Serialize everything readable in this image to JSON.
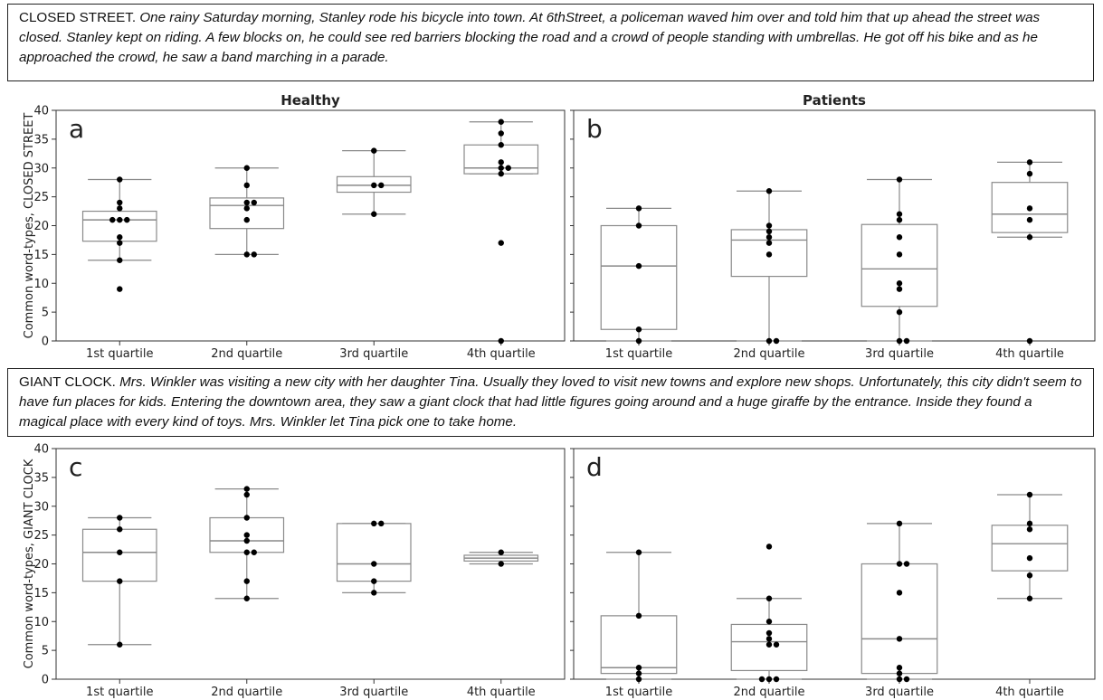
{
  "stories": [
    {
      "heading": "CLOSED STREET.",
      "text": "One rainy Saturday morning, Stanley rode his bicycle into town. At 6thStreet, a policeman waved him over and told him that up ahead the street was closed. Stanley kept on riding. A few blocks on, he could see red barriers blocking the road and a crowd of people standing with umbrellas. He got off his bike and as he approached the crowd, he saw a band marching in a parade."
    },
    {
      "heading": "GIANT CLOCK.",
      "text": "Mrs. Winkler was visiting a new city with her daughter Tina. Usually they loved to visit new towns and explore new shops. Unfortunately, this city didn't seem to have fun places for kids. Entering the downtown area, they saw a giant clock that had little figures going around and a huge giraffe by the entrance. Inside they found a magical place with every kind of toys. Mrs. Winkler let Tina pick one to take home."
    }
  ],
  "chart_data": [
    {
      "type": "box",
      "panel": "a",
      "title": "Healthy",
      "ylabel": "Common word-types, CLOSED STREET",
      "ylim": [
        0,
        40
      ],
      "yticks": [
        0,
        5,
        10,
        15,
        20,
        25,
        30,
        35,
        40
      ],
      "categories": [
        "1st quartile",
        "2nd quartile",
        "3rd quartile",
        "4th quartile"
      ],
      "boxes": [
        {
          "min": 14,
          "q1": 17.3,
          "median": 21,
          "q3": 22.5,
          "max": 28
        },
        {
          "min": 15,
          "q1": 19.5,
          "median": 23.5,
          "q3": 24.8,
          "max": 30
        },
        {
          "min": 22,
          "q1": 25.8,
          "median": 27,
          "q3": 28.5,
          "max": 33
        },
        {
          "min": 29,
          "q1": 29,
          "median": 30,
          "q3": 34,
          "max": 38
        }
      ],
      "points": [
        [
          28,
          24,
          23,
          21,
          21,
          21,
          18,
          17,
          14,
          9
        ],
        [
          30,
          27,
          24,
          24,
          23,
          21,
          15,
          15
        ],
        [
          33,
          27,
          27,
          22
        ],
        [
          38,
          36,
          34,
          31,
          30,
          30,
          29,
          17,
          0
        ]
      ]
    },
    {
      "type": "box",
      "panel": "b",
      "title": "Patients",
      "ylabel": "",
      "ylim": [
        0,
        40
      ],
      "categories": [
        "1st quartile",
        "2nd quartile",
        "3rd quartile",
        "4th quartile"
      ],
      "boxes": [
        {
          "min": 0,
          "q1": 2,
          "median": 13,
          "q3": 20,
          "max": 23
        },
        {
          "min": 0,
          "q1": 11.2,
          "median": 17.5,
          "q3": 19.3,
          "max": 26
        },
        {
          "min": 0,
          "q1": 6,
          "median": 12.5,
          "q3": 20.2,
          "max": 28
        },
        {
          "min": 18,
          "q1": 18.8,
          "median": 22,
          "q3": 27.5,
          "max": 31
        }
      ],
      "points": [
        [
          23,
          20,
          13,
          2,
          0
        ],
        [
          26,
          20,
          19,
          18,
          17,
          15,
          0,
          0
        ],
        [
          28,
          22,
          21,
          18,
          15,
          10,
          9,
          5,
          0,
          0
        ],
        [
          31,
          29,
          23,
          21,
          18,
          0
        ]
      ]
    },
    {
      "type": "box",
      "panel": "c",
      "title": "",
      "ylabel": "Common word-types, GIANT CLOCK",
      "ylim": [
        0,
        40
      ],
      "yticks": [
        0,
        5,
        10,
        15,
        20,
        25,
        30,
        35,
        40
      ],
      "categories": [
        "1st quartile",
        "2nd quartile",
        "3rd quartile",
        "4th quartile"
      ],
      "boxes": [
        {
          "min": 6,
          "q1": 17,
          "median": 22,
          "q3": 26,
          "max": 28
        },
        {
          "min": 14,
          "q1": 22,
          "median": 24,
          "q3": 28,
          "max": 33
        },
        {
          "min": 15,
          "q1": 17,
          "median": 20,
          "q3": 27,
          "max": 27
        },
        {
          "min": 20,
          "q1": 20.5,
          "median": 21,
          "q3": 21.5,
          "max": 22
        }
      ],
      "points": [
        [
          28,
          26,
          22,
          17,
          6
        ],
        [
          33,
          32,
          28,
          25,
          24,
          22,
          22,
          17,
          14
        ],
        [
          27,
          27,
          20,
          17,
          15
        ],
        [
          22,
          20
        ]
      ]
    },
    {
      "type": "box",
      "panel": "d",
      "title": "",
      "ylabel": "",
      "ylim": [
        0,
        40
      ],
      "categories": [
        "1st quartile",
        "2nd quartile",
        "3rd quartile",
        "4th quartile"
      ],
      "boxes": [
        {
          "min": 0,
          "q1": 1,
          "median": 2,
          "q3": 11,
          "max": 22
        },
        {
          "min": 0,
          "q1": 1.5,
          "median": 6.5,
          "q3": 9.5,
          "max": 14
        },
        {
          "min": 0,
          "q1": 1,
          "median": 7,
          "q3": 20,
          "max": 27
        },
        {
          "min": 14,
          "q1": 18.8,
          "median": 23.5,
          "q3": 26.7,
          "max": 32
        }
      ],
      "points": [
        [
          22,
          11,
          2,
          1,
          0
        ],
        [
          23,
          14,
          10,
          8,
          7,
          6,
          6,
          0,
          0,
          0
        ],
        [
          27,
          20,
          20,
          15,
          7,
          2,
          1,
          0,
          0
        ],
        [
          32,
          27,
          26,
          21,
          18,
          14
        ]
      ]
    }
  ]
}
